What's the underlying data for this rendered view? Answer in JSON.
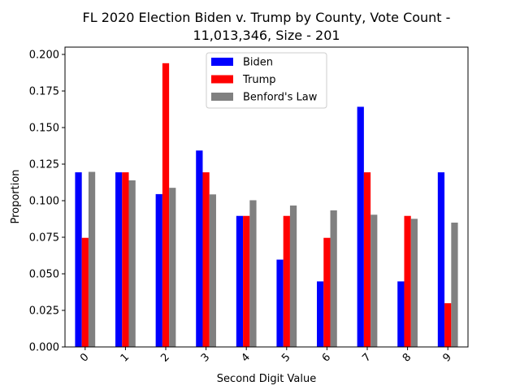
{
  "chart_data": {
    "type": "bar",
    "title": "FL 2020 Election Biden v. Trump by County, Vote Count -",
    "subtitle": "11,013,346, Size - 201",
    "xlabel": "Second Digit Value",
    "ylabel": "Proportion",
    "categories": [
      "0",
      "1",
      "2",
      "3",
      "4",
      "5",
      "6",
      "7",
      "8",
      "9"
    ],
    "ylim": [
      0,
      0.205
    ],
    "yticks": [
      "0.000",
      "0.025",
      "0.050",
      "0.075",
      "0.100",
      "0.125",
      "0.150",
      "0.175",
      "0.200"
    ],
    "grid": false,
    "legend_position": "top-center",
    "series": [
      {
        "name": "Biden",
        "color": "#0000ff",
        "values": [
          0.1194,
          0.1194,
          0.1045,
          0.1343,
          0.0896,
          0.0597,
          0.0448,
          0.1642,
          0.0448,
          0.1194
        ]
      },
      {
        "name": "Trump",
        "color": "#ff0000",
        "values": [
          0.0746,
          0.1194,
          0.194,
          0.1194,
          0.0896,
          0.0896,
          0.0746,
          0.1194,
          0.0896,
          0.0299
        ]
      },
      {
        "name": "Benford's Law",
        "color": "#808080",
        "values": [
          0.1197,
          0.1139,
          0.1088,
          0.1043,
          0.1003,
          0.0967,
          0.0934,
          0.0904,
          0.0876,
          0.085
        ]
      }
    ]
  }
}
